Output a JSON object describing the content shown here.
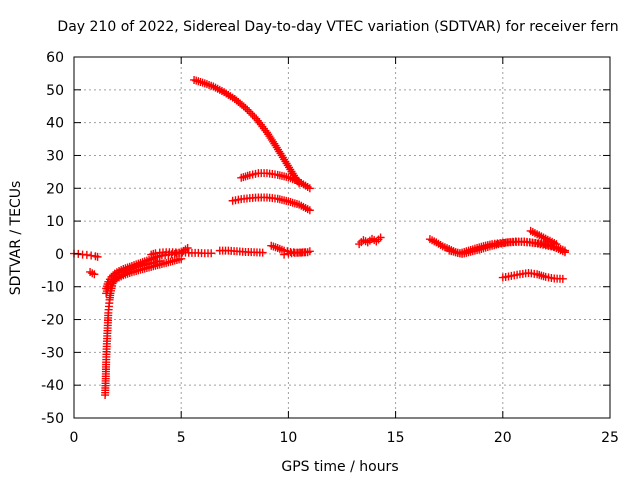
{
  "chart_data": {
    "type": "scatter",
    "title": "Day 210 of 2022, Sidereal Day-to-day VTEC variation (SDTVAR) for receiver fern",
    "xlabel": "GPS time / hours",
    "ylabel": "SDTVAR / TECUs",
    "xlim": [
      0,
      25
    ],
    "ylim": [
      -50,
      60
    ],
    "xticks": [
      0,
      5,
      10,
      15,
      20,
      25
    ],
    "yticks": [
      -50,
      -40,
      -30,
      -20,
      -10,
      0,
      10,
      20,
      30,
      40,
      50,
      60
    ],
    "grid": true,
    "marker": "+",
    "color": "#ff0000",
    "series": [
      {
        "x": [
          0.0,
          0.2,
          0.4,
          0.6,
          0.8,
          1.0,
          1.1
        ],
        "y": [
          0.1,
          0.0,
          -0.2,
          -0.3,
          -0.5,
          -0.7,
          -0.9
        ]
      },
      {
        "x": [
          0.75,
          0.85,
          0.95
        ],
        "y": [
          -5.5,
          -5.9,
          -6.2
        ]
      },
      {
        "x": [
          1.45,
          1.48,
          1.5,
          1.52,
          1.55,
          1.58,
          1.6,
          1.63,
          1.66,
          1.7,
          1.75,
          1.8,
          1.9,
          2.0,
          2.2,
          2.4,
          2.6,
          2.8,
          3.0,
          3.3,
          3.6,
          4.0
        ],
        "y": [
          -43,
          -38,
          -33,
          -29,
          -25,
          -21,
          -18,
          -16,
          -14,
          -12,
          -10.5,
          -9,
          -7.8,
          -6.8,
          -5.8,
          -5.2,
          -4.7,
          -4.2,
          -3.8,
          -3.3,
          -2.8,
          -2.2
        ]
      },
      {
        "x": [
          1.5,
          1.6,
          1.75,
          1.9,
          2.1,
          2.3,
          2.6,
          2.9,
          3.2,
          3.5,
          3.8,
          4.1,
          4.4,
          4.7,
          5.0,
          5.3
        ],
        "y": [
          -10.5,
          -8.5,
          -7.0,
          -6.0,
          -5.2,
          -4.6,
          -3.9,
          -3.2,
          -2.5,
          -1.8,
          -1.0,
          -0.5,
          -0.2,
          0.0,
          0.5,
          1.8
        ]
      },
      {
        "x": [
          1.5,
          1.6,
          1.8,
          2.0,
          2.3,
          2.6,
          3.0,
          3.4,
          3.8,
          4.2,
          4.6,
          5.0
        ],
        "y": [
          -12,
          -10,
          -8.5,
          -7.5,
          -6.5,
          -5.8,
          -5.0,
          -4.3,
          -3.6,
          -2.9,
          -2.2,
          -1.5
        ]
      },
      {
        "x": [
          3.6,
          3.8,
          4.0,
          4.3,
          4.6,
          4.9,
          5.2,
          5.5,
          5.8,
          6.1,
          6.4
        ],
        "y": [
          -0.2,
          0.2,
          0.4,
          0.5,
          0.5,
          0.4,
          0.4,
          0.3,
          0.3,
          0.2,
          0.2
        ]
      },
      {
        "x": [
          5.6,
          6.0,
          6.5,
          7.0,
          7.5,
          8.0,
          8.5,
          9.0,
          9.4,
          9.8,
          10.2,
          10.5
        ],
        "y": [
          53,
          52.2,
          51,
          49.3,
          47.2,
          44.5,
          41.2,
          37.0,
          33.0,
          28.8,
          24.5,
          21.5
        ]
      },
      {
        "x": [
          7.8,
          8.2,
          8.6,
          9.0,
          9.5,
          10.0,
          10.5,
          11.0
        ],
        "y": [
          23.2,
          24.0,
          24.6,
          24.6,
          24.1,
          23.3,
          22.0,
          20.0
        ]
      },
      {
        "x": [
          7.4,
          7.8,
          8.2,
          8.6,
          9.0,
          9.5,
          10.0,
          10.5,
          11.0
        ],
        "y": [
          16.2,
          16.7,
          17.0,
          17.2,
          17.2,
          16.8,
          16.0,
          15.0,
          13.3
        ]
      },
      {
        "x": [
          6.8,
          7.2,
          7.6,
          8.0,
          8.4,
          8.8
        ],
        "y": [
          1.0,
          1.0,
          0.8,
          0.6,
          0.5,
          0.4
        ]
      },
      {
        "x": [
          9.2,
          9.5,
          9.8,
          10.1,
          10.4,
          10.8,
          11.0
        ],
        "y": [
          2.5,
          1.8,
          1.0,
          0.6,
          0.4,
          0.5,
          0.8
        ]
      },
      {
        "x": [
          9.8,
          10.0,
          10.3,
          10.6,
          10.9
        ],
        "y": [
          -0.2,
          0.1,
          0.3,
          0.4,
          0.5
        ]
      },
      {
        "x": [
          13.3,
          13.5,
          13.7,
          13.9,
          14.1,
          14.3
        ],
        "y": [
          3.0,
          4.2,
          3.5,
          4.6,
          3.8,
          5.0
        ]
      },
      {
        "x": [
          16.6,
          16.9,
          17.2,
          17.5,
          17.8,
          18.1,
          18.4,
          18.7,
          19.0,
          19.4,
          19.8,
          20.2,
          20.6,
          21.0,
          21.4,
          21.8,
          22.2,
          22.6,
          22.9
        ],
        "y": [
          4.5,
          3.5,
          2.3,
          1.5,
          0.5,
          0.0,
          0.5,
          1.0,
          1.5,
          2.3,
          3.0,
          3.5,
          3.8,
          3.6,
          3.4,
          3.2,
          2.6,
          1.5,
          0.5
        ]
      },
      {
        "x": [
          17.5,
          18.0,
          18.5,
          19.0,
          19.5,
          20.0,
          20.5,
          21.0,
          21.5,
          22.0,
          22.5,
          22.9
        ],
        "y": [
          1.0,
          0.2,
          1.2,
          2.2,
          3.0,
          3.4,
          3.6,
          3.8,
          3.3,
          2.6,
          2.0,
          1.0
        ]
      },
      {
        "x": [
          21.3,
          21.6,
          21.9,
          22.2,
          22.5
        ],
        "y": [
          7.0,
          6.0,
          5.0,
          4.0,
          3.0
        ]
      },
      {
        "x": [
          20.0,
          20.4,
          20.8,
          21.2,
          21.6,
          22.0,
          22.4,
          22.8
        ],
        "y": [
          -7.2,
          -6.7,
          -6.2,
          -5.8,
          -6.2,
          -7.0,
          -7.5,
          -7.6
        ]
      }
    ]
  }
}
